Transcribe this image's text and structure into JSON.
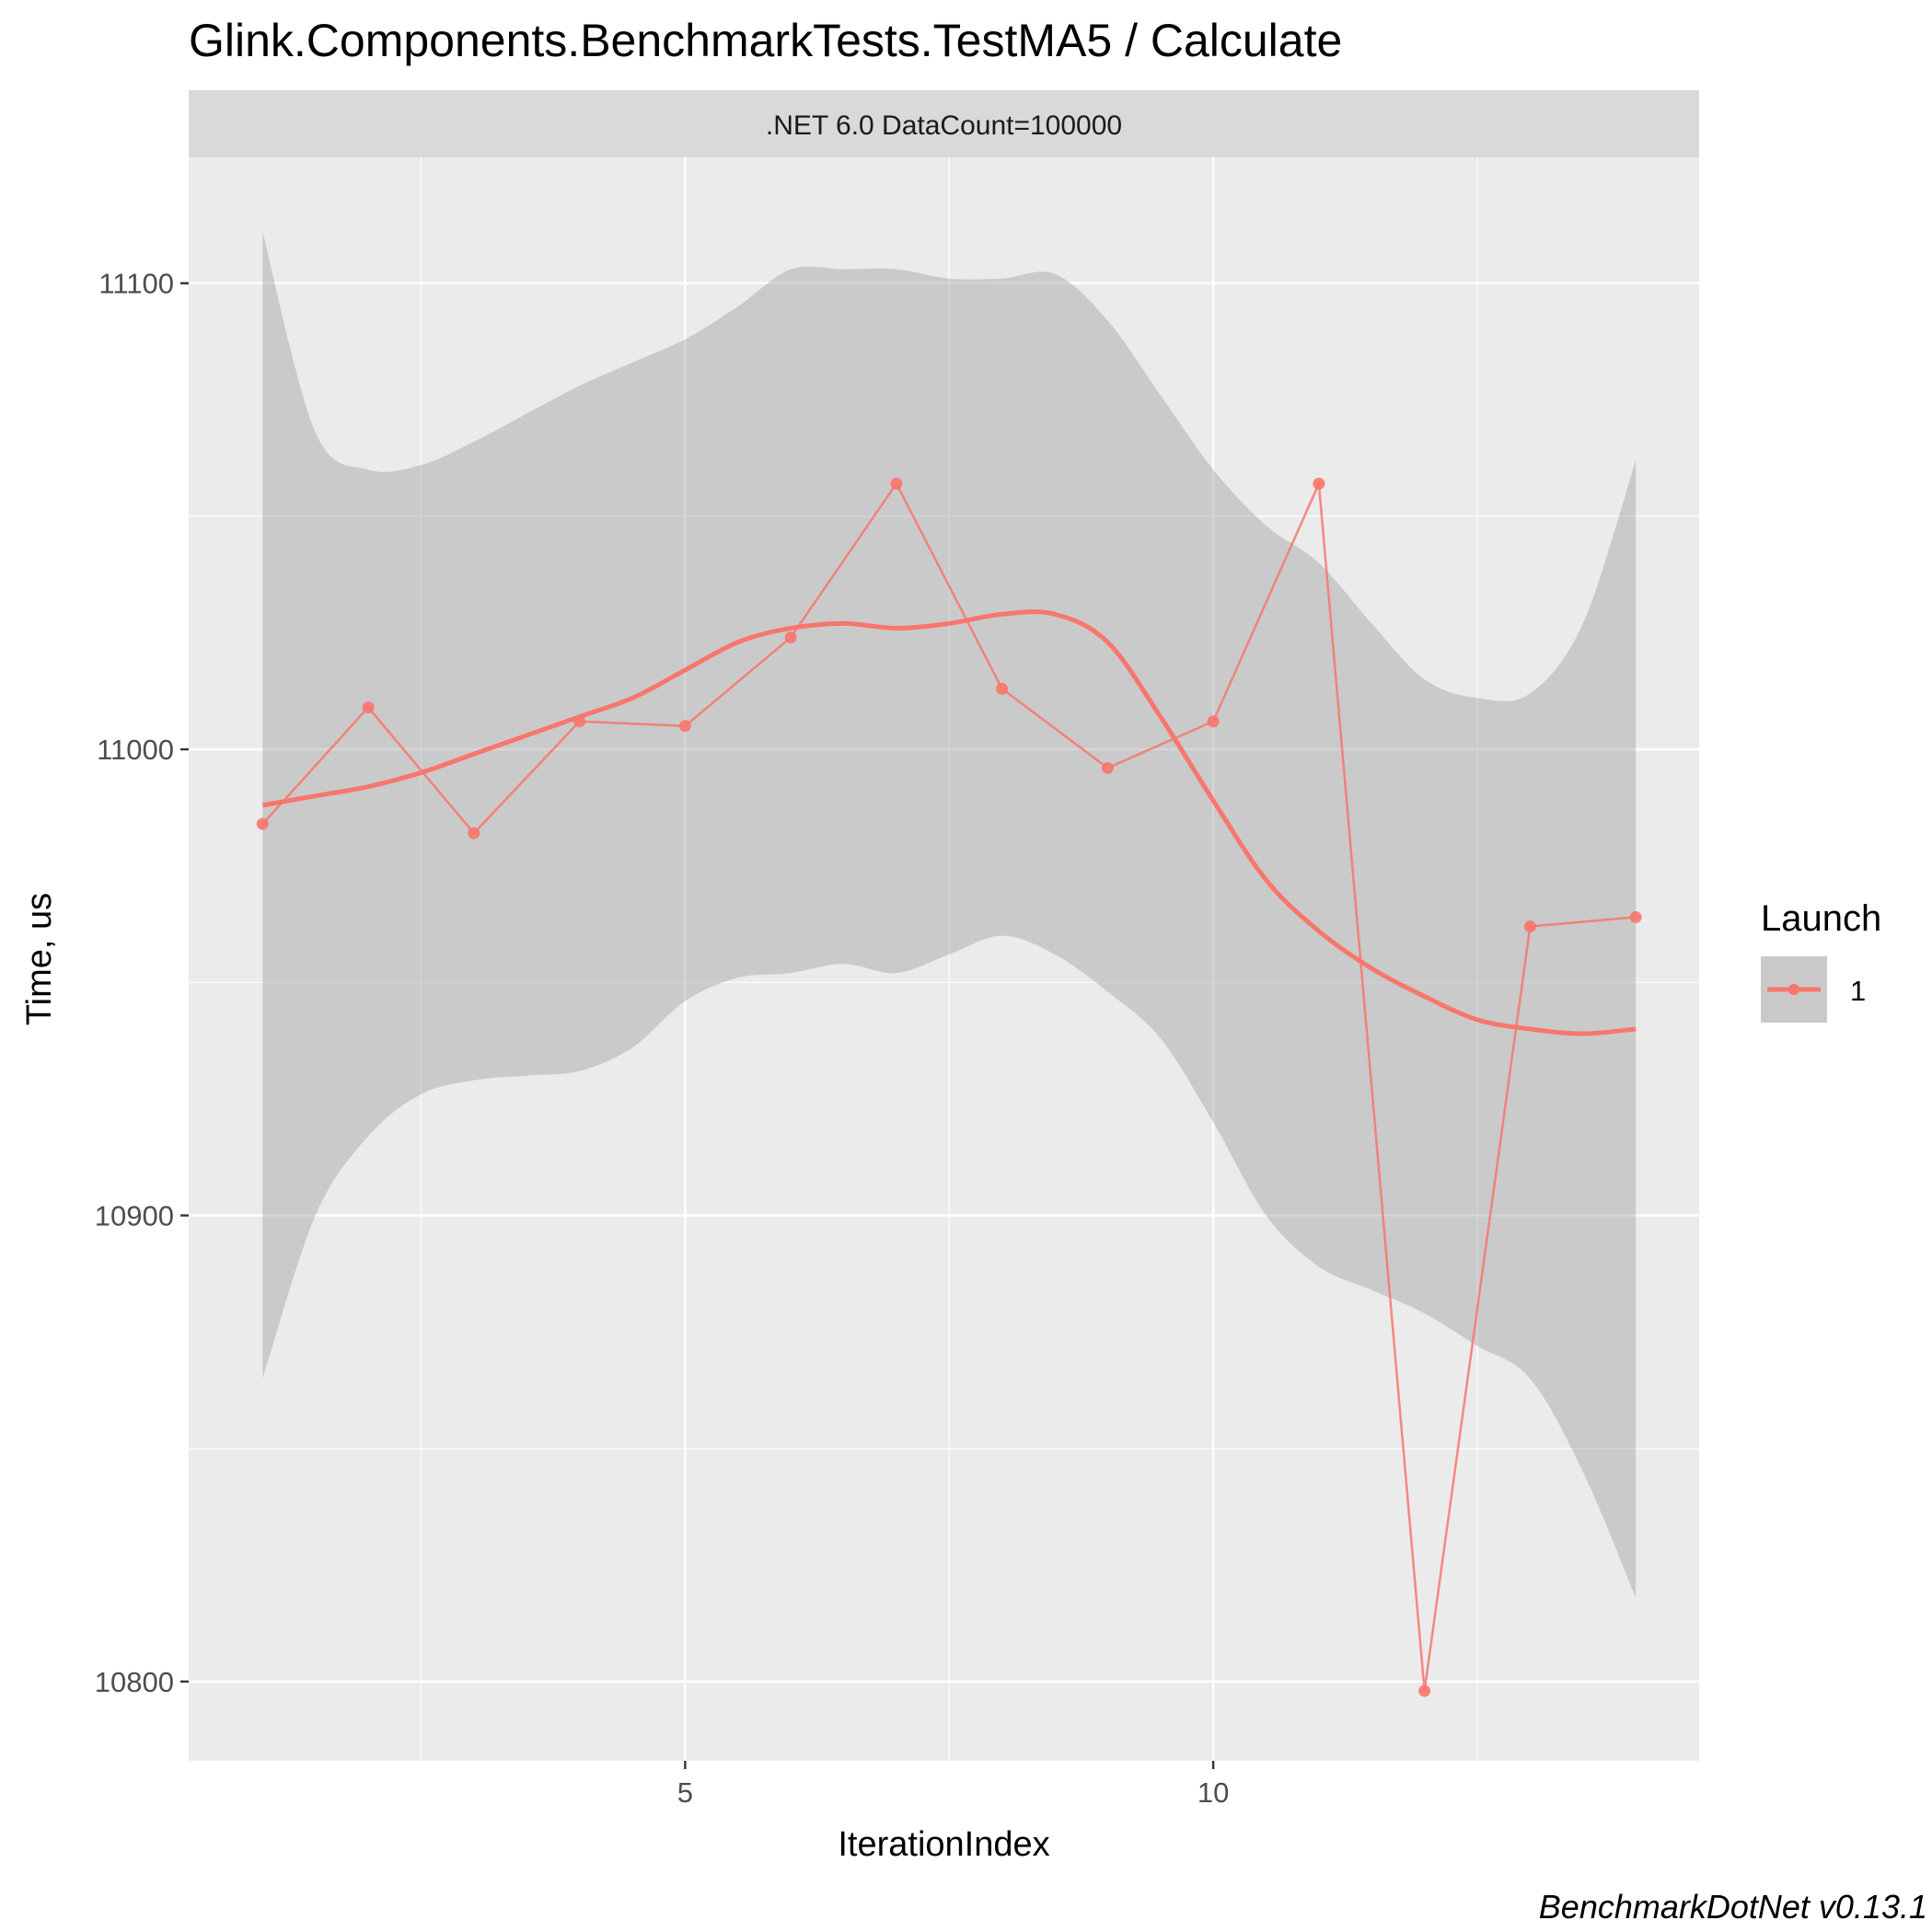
{
  "chart_data": {
    "type": "line",
    "title": "Glink.Components.BenchmarkTests.TestMA5 / Calculate",
    "facet_label": ".NET 6.0 DataCount=100000",
    "xlabel": "IterationIndex",
    "ylabel": "Time, us",
    "xlim": [
      0.3,
      14.6
    ],
    "ylim": [
      10783,
      11127
    ],
    "x_ticks": [
      5,
      10
    ],
    "y_ticks": [
      10800,
      10900,
      11000,
      11100
    ],
    "grid": true,
    "legend": {
      "title": "Launch",
      "position": "right",
      "entries": [
        "1"
      ]
    },
    "series": [
      {
        "name": "1",
        "color": "#F8766D",
        "x": [
          1,
          2,
          3,
          4,
          5,
          6,
          7,
          8,
          9,
          10,
          11,
          12,
          13,
          14
        ],
        "values": [
          10984,
          11009,
          10982,
          11006,
          11005,
          11024,
          11057,
          11013,
          10996,
          11006,
          11057,
          10798,
          10962,
          10964
        ]
      }
    ],
    "smooth": {
      "method": "loess",
      "color": "#F8766D",
      "ribbon_color": "#999999",
      "x": [
        1,
        1.5,
        2,
        2.5,
        3,
        3.5,
        4,
        4.5,
        5,
        5.5,
        6,
        6.5,
        7,
        7.5,
        8,
        8.5,
        9,
        9.5,
        10,
        10.5,
        11,
        11.5,
        12,
        12.5,
        13,
        13.5,
        14
      ],
      "fit": [
        10988,
        10990,
        10992,
        10995,
        10999,
        11003,
        11007,
        11011,
        11017,
        11023,
        11026,
        11027,
        11026,
        11027,
        11029,
        11029,
        11023,
        11007,
        10989,
        10972,
        10961,
        10953,
        10947,
        10942,
        10940,
        10939,
        10940
      ],
      "upper": [
        11111,
        11068,
        11060,
        11061,
        11066,
        11072,
        11078,
        11083,
        11088,
        11095,
        11103,
        11103,
        11103,
        11101,
        11101,
        11102,
        11092,
        11076,
        11060,
        11048,
        11040,
        11027,
        11015,
        11011,
        11012,
        11027,
        11062
      ],
      "lower": [
        10865,
        10900,
        10917,
        10926,
        10929,
        10930,
        10931,
        10936,
        10946,
        10951,
        10952,
        10954,
        10952,
        10956,
        10960,
        10956,
        10948,
        10938,
        10920,
        10900,
        10889,
        10884,
        10879,
        10872,
        10865,
        10845,
        10818
      ]
    }
  },
  "caption": "BenchmarkDotNet v0.13.1"
}
